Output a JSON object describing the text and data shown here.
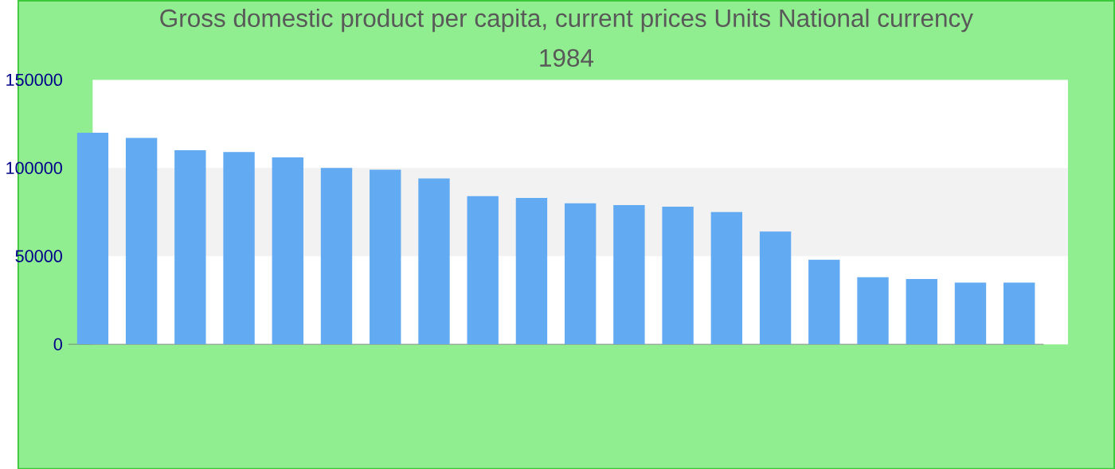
{
  "chart_data": {
    "type": "bar",
    "title": "Gross domestic product per capita, current prices Units National currency",
    "subtitle": "1984",
    "categories": [
      null,
      null,
      null,
      null,
      null,
      null,
      null,
      null,
      null,
      null,
      null,
      null,
      null,
      null,
      null,
      null,
      null,
      null,
      null,
      null
    ],
    "values": [
      120000,
      117000,
      110000,
      109000,
      106000,
      100000,
      99000,
      94000,
      84000,
      83000,
      80000,
      79000,
      78000,
      75000,
      64000,
      48000,
      38000,
      37000,
      35000,
      35000
    ],
    "color": "#62aaf2",
    "ylim": [
      0,
      150000
    ],
    "yticks": [
      0,
      50000,
      100000,
      150000
    ],
    "bands": [
      {
        "axis": "y",
        "from": 50000,
        "to": 100000,
        "color": "#f2f2f2"
      }
    ]
  }
}
